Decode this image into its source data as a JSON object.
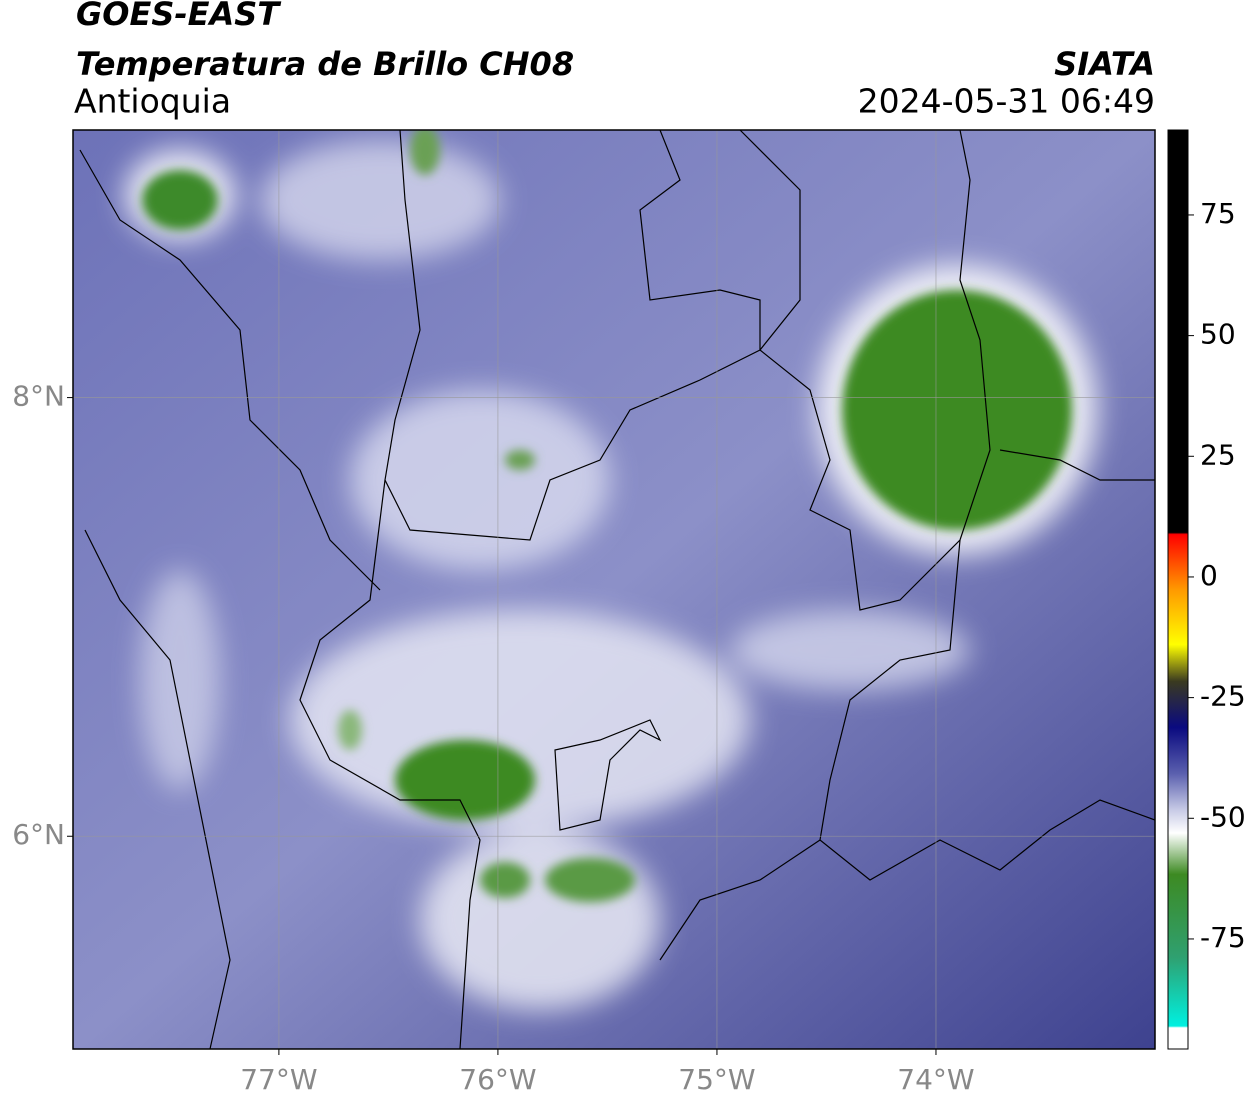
{
  "header": {
    "title": "GOES-EAST",
    "subtitle": "Temperatura de Brillo CH08",
    "region": "Antioquia",
    "source": "SIATA",
    "datetime": "2024-05-31 06:49"
  },
  "map": {
    "xlim": [
      -77.94,
      -73.0
    ],
    "ylim": [
      5.03,
      9.22
    ],
    "xticks": [
      {
        "value": -77,
        "label": "77°W"
      },
      {
        "value": -76,
        "label": "76°W"
      },
      {
        "value": -75,
        "label": "75°W"
      },
      {
        "value": -74,
        "label": "74°W"
      }
    ],
    "yticks": [
      {
        "value": 8,
        "label": "8°N"
      },
      {
        "value": 6,
        "label": "6°N"
      }
    ],
    "grid": true
  },
  "colorbar": {
    "lim": [
      -97.8,
      92.6
    ],
    "ticks": [
      75,
      50,
      25,
      0,
      -25,
      -50,
      -75
    ]
  }
}
